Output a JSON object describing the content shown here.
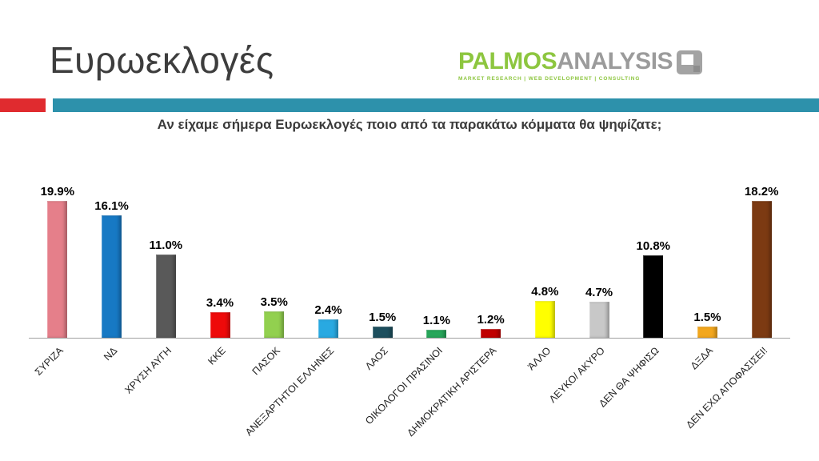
{
  "header": {
    "title": "Ευρωεκλογές",
    "logo": {
      "name_primary": "PALMOS",
      "name_secondary": "ANALYSIS",
      "tagline": "MARKET RESEARCH | WEB DEVELOPMENT | CONSULTING"
    }
  },
  "question": "Αν είχαμε σήμερα Ευρωεκλογές ποιο από τα παρακάτω κόμματα θα ψηφίζατε;",
  "colors": {
    "accent_red": "#e02b2f",
    "accent_teal": "#2d91ab",
    "logo_green": "#8dc63f",
    "logo_gray": "#9b9b9b",
    "axis": "#a0a0a0"
  },
  "chart_data": {
    "type": "bar",
    "title": "Αν είχαμε σήμερα Ευρωεκλογές ποιο από τα παρακάτω κόμματα θα ψηφίζατε;",
    "categories": [
      "ΣΥΡΙΖΑ",
      "ΝΔ",
      "ΧΡΥΣΗ ΑΥΓΗ",
      "ΚΚΕ",
      "ΠΑΣΟΚ",
      "ΑΝΕΞΑΡΤΗΤΟΙ ΕΛΛΗΝΕΣ",
      "ΛΑΟΣ",
      "ΟΙΚΟΛΟΓΟΙ ΠΡΑΣΙΝΟΙ",
      "ΔΗΜΟΚΡΑΤΙΚΗ ΑΡΙΣΤΕΡΑ",
      "ΆΛΛΟ",
      "ΛΕΥΚΟ/ ΑΚΥΡΟ",
      "ΔΕΝ ΘΑ ΨΗΦΙΣΩ",
      "ΔΞΔΑ",
      "ΔΕΝ ΕΧΩ ΑΠΟΦΑΣΙΣΕΙ!"
    ],
    "values": [
      19.9,
      16.1,
      11.0,
      3.4,
      3.5,
      2.4,
      1.5,
      1.1,
      1.2,
      4.8,
      4.7,
      10.8,
      1.5,
      18.2
    ],
    "value_labels": [
      "19.9%",
      "16.1%",
      "11.0%",
      "3.4%",
      "3.5%",
      "2.4%",
      "1.5%",
      "1.1%",
      "1.2%",
      "4.8%",
      "4.7%",
      "10.8%",
      "1.5%",
      "18.2%"
    ],
    "bar_colors": [
      "#e57f8a",
      "#1779c4",
      "#595959",
      "#ee0a0a",
      "#92d04f",
      "#29a9e1",
      "#1d4f5e",
      "#27a65a",
      "#c00000",
      "#ffff00",
      "#c8c8c8",
      "#000000",
      "#f2a71e",
      "#7c3a12"
    ],
    "xlabel": "",
    "ylabel": "",
    "ylim": [
      0,
      20
    ],
    "grid": false,
    "legend": false,
    "value_label_position": "above",
    "category_label_rotation_deg": 45
  }
}
